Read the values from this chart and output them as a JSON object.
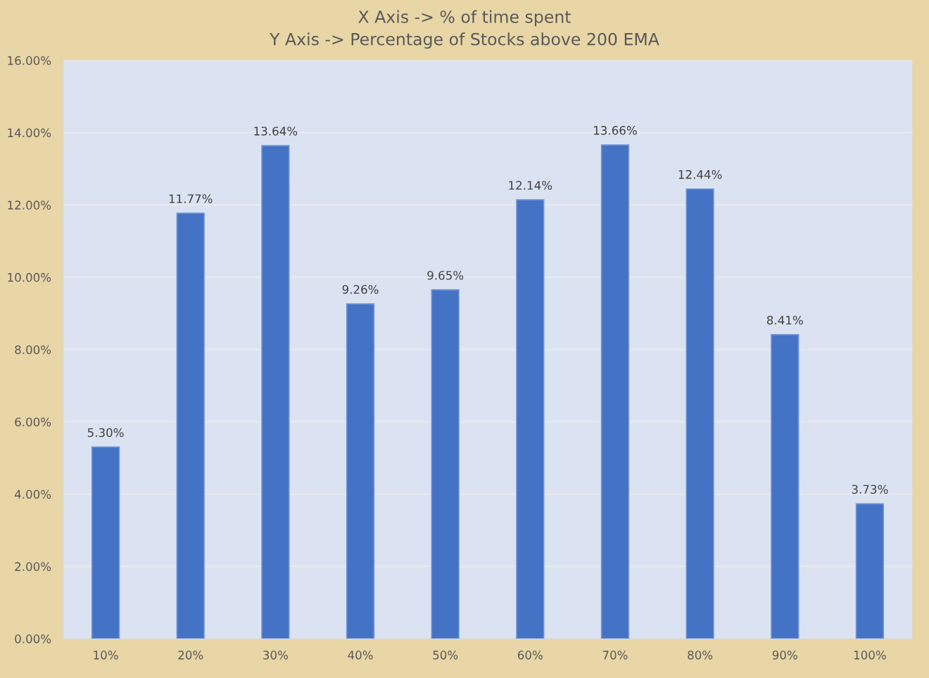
{
  "chart_data": {
    "type": "bar",
    "title": "X Axis -> % of time spent\nY Axis -> Percentage of Stocks above 200 EMA",
    "categories": [
      "10%",
      "20%",
      "30%",
      "40%",
      "50%",
      "60%",
      "70%",
      "80%",
      "90%",
      "100%"
    ],
    "values": [
      5.3,
      11.77,
      13.64,
      9.26,
      9.65,
      12.14,
      13.66,
      12.44,
      8.41,
      3.73
    ],
    "value_labels": [
      "5.30%",
      "11.77%",
      "13.64%",
      "9.26%",
      "9.65%",
      "12.14%",
      "13.66%",
      "12.44%",
      "8.41%",
      "3.73%"
    ],
    "color": "#4472c4",
    "ylim": [
      0,
      16
    ],
    "yticks": [
      {
        "value": 0,
        "label": "0.00%"
      },
      {
        "value": 2,
        "label": "2.00%"
      },
      {
        "value": 4,
        "label": "4.00%"
      },
      {
        "value": 6,
        "label": "6.00%"
      },
      {
        "value": 8,
        "label": "8.00%"
      },
      {
        "value": 10,
        "label": "10.00%"
      },
      {
        "value": 12,
        "label": "12.00%"
      },
      {
        "value": 14,
        "label": "14.00%"
      },
      {
        "value": 16,
        "label": "16.00%"
      }
    ],
    "grid": "y"
  }
}
